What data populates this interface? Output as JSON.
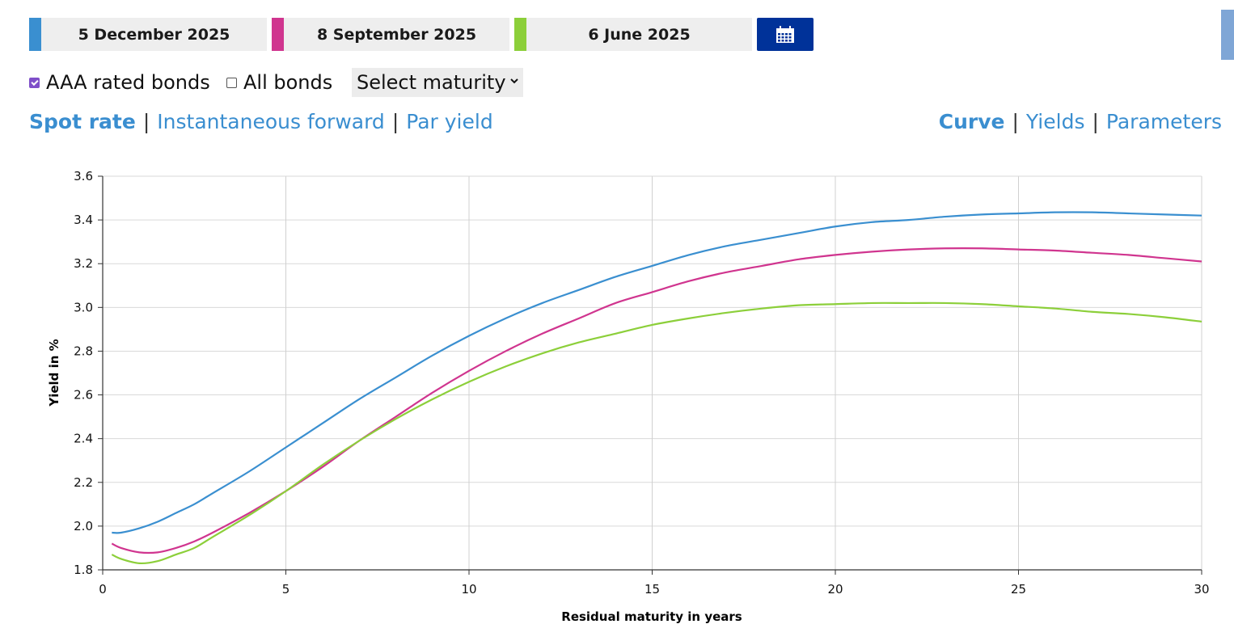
{
  "dates": [
    {
      "label": "5 December 2025",
      "color": "#3a8fd0"
    },
    {
      "label": "8 September 2025",
      "color": "#d0358f"
    },
    {
      "label": "6 June 2025",
      "color": "#8ccf3a"
    }
  ],
  "calendar_icon": "calendar-icon",
  "options": {
    "aaa_label": "AAA rated bonds",
    "aaa_checked": true,
    "all_label": "All bonds",
    "all_checked": false,
    "select_maturity": "Select maturity"
  },
  "rate_tabs": {
    "spot": "Spot rate",
    "forward": "Instantaneous forward",
    "par": "Par yield",
    "separator": "|",
    "active": "spot"
  },
  "view_tabs": {
    "curve": "Curve",
    "yields": "Yields",
    "parameters": "Parameters",
    "active": "curve"
  },
  "chart_data": {
    "type": "line",
    "xlabel": "Residual maturity in years",
    "ylabel": "Yield in %",
    "xlim": [
      0,
      30
    ],
    "ylim": [
      1.8,
      3.6
    ],
    "xticks": [
      0,
      5,
      10,
      15,
      20,
      25,
      30
    ],
    "yticks": [
      1.8,
      2.0,
      2.2,
      2.4,
      2.6,
      2.8,
      3.0,
      3.2,
      3.4,
      3.6
    ],
    "grid": true,
    "x": [
      0.25,
      0.5,
      1,
      1.5,
      2,
      2.5,
      3,
      4,
      5,
      6,
      7,
      8,
      9,
      10,
      11,
      12,
      13,
      14,
      15,
      16,
      17,
      18,
      19,
      20,
      21,
      22,
      23,
      24,
      25,
      26,
      27,
      28,
      29,
      30
    ],
    "series": [
      {
        "name": "5 December 2025",
        "color": "#3a8fd0",
        "values": [
          1.97,
          1.97,
          1.99,
          2.02,
          2.06,
          2.1,
          2.15,
          2.25,
          2.36,
          2.47,
          2.58,
          2.68,
          2.78,
          2.87,
          2.95,
          3.02,
          3.08,
          3.14,
          3.19,
          3.24,
          3.28,
          3.31,
          3.34,
          3.37,
          3.39,
          3.4,
          3.415,
          3.425,
          3.43,
          3.435,
          3.435,
          3.43,
          3.425,
          3.42
        ]
      },
      {
        "name": "8 September 2025",
        "color": "#d0358f",
        "values": [
          1.92,
          1.9,
          1.88,
          1.88,
          1.9,
          1.93,
          1.97,
          2.06,
          2.16,
          2.27,
          2.39,
          2.5,
          2.61,
          2.71,
          2.8,
          2.88,
          2.95,
          3.02,
          3.07,
          3.12,
          3.16,
          3.19,
          3.22,
          3.24,
          3.255,
          3.265,
          3.27,
          3.27,
          3.265,
          3.26,
          3.25,
          3.24,
          3.225,
          3.21
        ]
      },
      {
        "name": "6 June 2025",
        "color": "#8ccf3a",
        "values": [
          1.87,
          1.85,
          1.83,
          1.84,
          1.87,
          1.9,
          1.95,
          2.05,
          2.16,
          2.28,
          2.39,
          2.49,
          2.58,
          2.66,
          2.73,
          2.79,
          2.84,
          2.88,
          2.92,
          2.95,
          2.975,
          2.995,
          3.01,
          3.015,
          3.02,
          3.02,
          3.02,
          3.015,
          3.005,
          2.995,
          2.98,
          2.97,
          2.955,
          2.935
        ]
      }
    ]
  }
}
